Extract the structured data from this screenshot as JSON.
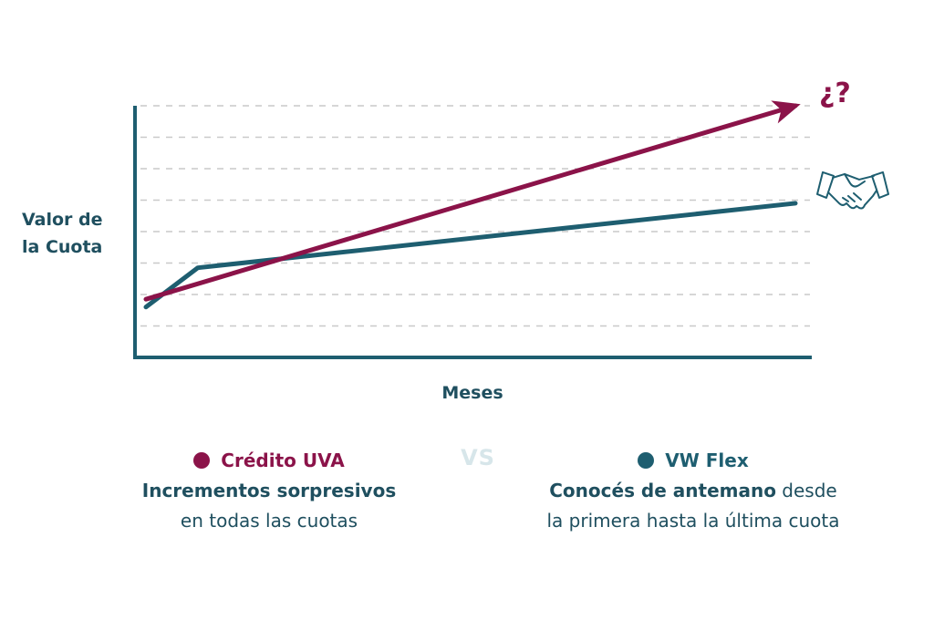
{
  "colors": {
    "uva": "#8b1349",
    "flex": "#1e5e70",
    "axis": "#1e5e70",
    "grid": "#c9c9c9"
  },
  "chart_data": {
    "type": "line",
    "xlabel": "Meses",
    "ylabel_lines": [
      "Valor de",
      "la Cuota"
    ],
    "xlim": [
      0,
      1
    ],
    "ylim": [
      0,
      8
    ],
    "grid": true,
    "series": [
      {
        "name": "Crédito UVA",
        "x": [
          0,
          1
        ],
        "y": [
          1.85,
          8.0
        ],
        "style": "arrow"
      },
      {
        "name": "VW Flex",
        "x": [
          0,
          0.08,
          1
        ],
        "y": [
          1.6,
          2.85,
          4.9
        ]
      }
    ],
    "annotations": [
      {
        "text": "¿?",
        "series": "Crédito UVA",
        "position": "end"
      },
      {
        "icon": "handshake-icon",
        "series": "VW Flex",
        "position": "end"
      }
    ]
  },
  "legend": {
    "vs": "VS",
    "uva": {
      "title": "Crédito UVA",
      "line1": "Incrementos sorpresivos",
      "line2": "en todas las cuotas"
    },
    "flex": {
      "title": "VW Flex",
      "line1_bold": "Conocés de antemano",
      "line1_rest": " desde",
      "line2": "la primera hasta la última cuota"
    }
  }
}
